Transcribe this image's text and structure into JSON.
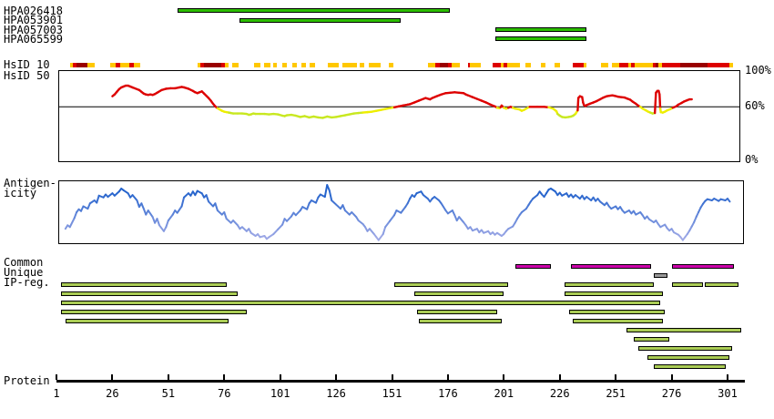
{
  "tracks": {
    "bar_color": "#2CBE00",
    "items": [
      {
        "label": "HPA026418",
        "start": 55,
        "end": 177
      },
      {
        "label": "HPA053901",
        "start": 83,
        "end": 155
      },
      {
        "label": "HPA057003",
        "start": 197,
        "end": 238
      },
      {
        "label": "HPA065599",
        "start": 197,
        "end": 238
      }
    ]
  },
  "hsid10": {
    "label": "HsID 10",
    "colors": {
      "O": "#FFC800",
      "R": "#DD0000",
      "D": "#990000"
    },
    "segments": [
      [
        7,
        8.5,
        "O"
      ],
      [
        8.5,
        10,
        "R"
      ],
      [
        10,
        15,
        "D"
      ],
      [
        15,
        18,
        "O"
      ],
      [
        25,
        27.5,
        "O"
      ],
      [
        27.5,
        29.5,
        "R"
      ],
      [
        29.5,
        33.5,
        "O"
      ],
      [
        33.5,
        35.5,
        "R"
      ],
      [
        35.5,
        38.5,
        "O"
      ],
      [
        64,
        65.5,
        "O"
      ],
      [
        65.5,
        67,
        "R"
      ],
      [
        67,
        74.5,
        "D"
      ],
      [
        74.5,
        76.5,
        "R"
      ],
      [
        76.5,
        78,
        "O"
      ],
      [
        79.5,
        82.5,
        "O"
      ],
      [
        89.5,
        92,
        "O"
      ],
      [
        94,
        96.5,
        "O"
      ],
      [
        98,
        99.5,
        "O"
      ],
      [
        102,
        104,
        "O"
      ],
      [
        106.5,
        108.5,
        "O"
      ],
      [
        110.5,
        112.5,
        "O"
      ],
      [
        114,
        116.5,
        "O"
      ],
      [
        122.5,
        127,
        "O"
      ],
      [
        129,
        135.5,
        "O"
      ],
      [
        136.5,
        138.5,
        "O"
      ],
      [
        140.5,
        146,
        "O"
      ],
      [
        149.5,
        151.5,
        "O"
      ],
      [
        167,
        170.5,
        "O"
      ],
      [
        170.5,
        172.5,
        "R"
      ],
      [
        172.5,
        176,
        "D"
      ],
      [
        176,
        177.5,
        "R"
      ],
      [
        177.5,
        181.5,
        "O"
      ],
      [
        185,
        186,
        "R"
      ],
      [
        186,
        190.5,
        "O"
      ],
      [
        196,
        199.5,
        "R"
      ],
      [
        199.5,
        201,
        "O"
      ],
      [
        201,
        202.5,
        "R"
      ],
      [
        202.5,
        208,
        "O"
      ],
      [
        210.5,
        213,
        "O"
      ],
      [
        217.5,
        219.5,
        "O"
      ],
      [
        223.5,
        226,
        "O"
      ],
      [
        232,
        236.5,
        "R"
      ],
      [
        236.5,
        238,
        "O"
      ],
      [
        244.5,
        247.5,
        "O"
      ],
      [
        249.5,
        252.5,
        "O"
      ],
      [
        252.5,
        256.5,
        "R"
      ],
      [
        256.5,
        258,
        "O"
      ],
      [
        258,
        259.5,
        "R"
      ],
      [
        259.5,
        267.5,
        "O"
      ],
      [
        267.5,
        269,
        "R"
      ],
      [
        269,
        270,
        "D"
      ],
      [
        270,
        271.5,
        "O"
      ],
      [
        271.5,
        280,
        "R"
      ],
      [
        280,
        292,
        "D"
      ],
      [
        292,
        302,
        "R"
      ],
      [
        302,
        303.5,
        "O"
      ]
    ]
  },
  "hsid50": {
    "label": "HsID 50",
    "pct_labels": [
      "100%",
      "60%",
      "0%"
    ],
    "colors": {
      "above": "#DD0000",
      "mid": "#EEEE00",
      "low": "#C8E820"
    },
    "rules": {
      "red_min": 59.5,
      "yellow_min": 53.5
    }
  },
  "antigenicity": {
    "label_line1": "Antigen-",
    "label_line2": "icity",
    "color_low": "#A8AEE8",
    "color_high": "#2463CC"
  },
  "regions": {
    "common_label": "Common",
    "unique_label": "Unique",
    "ip_label": "IP-reg.",
    "common_color": "#CC00AA",
    "unique_color": "#999999",
    "ip_color": "#AACC55"
  },
  "axis": {
    "label": "Protein"
  },
  "chart_data": [
    {
      "id": "antibody_coverage",
      "type": "gantt",
      "units": "residues",
      "tracks": [
        {
          "name": "HPA026418",
          "start": 55,
          "end": 177
        },
        {
          "name": "HPA053901",
          "start": 83,
          "end": 155
        },
        {
          "name": "HPA057003",
          "start": 197,
          "end": 238
        },
        {
          "name": "HPA065599",
          "start": 197,
          "end": 238
        }
      ]
    },
    {
      "id": "hsid50",
      "type": "line",
      "title": "HsID 50",
      "ylim": [
        0,
        100
      ],
      "threshold_pct": 60,
      "x_units": "residue",
      "points_flat": [
        26,
        72,
        27,
        74,
        28,
        77,
        29,
        80,
        30,
        82,
        31,
        83,
        32,
        84,
        33,
        84,
        34,
        83,
        35,
        82,
        36,
        81,
        38,
        79,
        39,
        77,
        40,
        75,
        41,
        74,
        42,
        73.5,
        43,
        74,
        44,
        73.5,
        45,
        74.5,
        46,
        76,
        48,
        79,
        50,
        80.5,
        52,
        81,
        54,
        81,
        56,
        82,
        57,
        82.5,
        58,
        82,
        60,
        80.5,
        62,
        78,
        63,
        76.5,
        64,
        75.5,
        65,
        76.5,
        66,
        77.5,
        67,
        75,
        68,
        72.5,
        69,
        70,
        70,
        67,
        71,
        63.5,
        72,
        60.5,
        73,
        58.5,
        74,
        57,
        75,
        55.5,
        76,
        54.5,
        77,
        54,
        78,
        53.5,
        79,
        53,
        80,
        52.5,
        82,
        52.5,
        84,
        52.5,
        86,
        52,
        87,
        51,
        88,
        51.5,
        89,
        52.5,
        90,
        52,
        92,
        52,
        94,
        52,
        96,
        51.5,
        98,
        52,
        100,
        51.5,
        102,
        50,
        103,
        49.5,
        104,
        50.5,
        106,
        51,
        108,
        50,
        110,
        48.5,
        112,
        49.5,
        114,
        48,
        116,
        49,
        118,
        48,
        120,
        47.5,
        122,
        49,
        124,
        48,
        126,
        48.5,
        128,
        49.5,
        130,
        50.5,
        132,
        51.5,
        134,
        52.5,
        136,
        53,
        138,
        53.5,
        140,
        54,
        142,
        54.5,
        144,
        55.5,
        146,
        56.5,
        148,
        57.5,
        150,
        58.5,
        152,
        59.5,
        154,
        60.5,
        156,
        61.5,
        158,
        62.5,
        159,
        63,
        161,
        65,
        163,
        67,
        165,
        69,
        166,
        70,
        168,
        68.5,
        169,
        70,
        171,
        72,
        173,
        74,
        175,
        75.5,
        177,
        76,
        179,
        76.5,
        181,
        76,
        183,
        75.5,
        184,
        74,
        185,
        73,
        187,
        71,
        189,
        69,
        191,
        67,
        193,
        65,
        195,
        62.5,
        197,
        60.5,
        198,
        59,
        199,
        58.5,
        199.5,
        59.5,
        200,
        61.5,
        201,
        59,
        202,
        58,
        203,
        59,
        204,
        60,
        205,
        59,
        206,
        58,
        208,
        57,
        209,
        55.5,
        210,
        56.5,
        211,
        58,
        212.5,
        60,
        216,
        60,
        219,
        60,
        221,
        59.5,
        223,
        58,
        224.5,
        55,
        225,
        52,
        226,
        50,
        227,
        48.5,
        228.5,
        48,
        230,
        48.5,
        231,
        49,
        232,
        50,
        233,
        52,
        234,
        56,
        234.3,
        70,
        235,
        72,
        236,
        71,
        236.4,
        65,
        236.8,
        62,
        237.5,
        61,
        238,
        62,
        239.5,
        63.5,
        241,
        65,
        242.5,
        66.5,
        244,
        68.5,
        245.5,
        70.5,
        247,
        72,
        248,
        72.5,
        249.5,
        73,
        250.5,
        72.5,
        252,
        71.5,
        253.5,
        71,
        255,
        70.5,
        256,
        69.5,
        257.5,
        68,
        258.5,
        66,
        260,
        63.5,
        261,
        61.5,
        262,
        60,
        263,
        58,
        264.5,
        56,
        265.5,
        54.5,
        266.5,
        53.5,
        267.5,
        52.5,
        268.5,
        53,
        269,
        76,
        269.6,
        78,
        270.2,
        78,
        270.6,
        74,
        270.9,
        58,
        271.2,
        54,
        272,
        53.5,
        273,
        54.5,
        274,
        56,
        275.5,
        57.5,
        276.5,
        59,
        278,
        60.5,
        279,
        62.5,
        280.5,
        64.5,
        281.5,
        66,
        283,
        67.5,
        284,
        68.5,
        285,
        68.5
      ]
    },
    {
      "id": "antigenicity",
      "type": "line",
      "title": "Antigenicity",
      "ylim": [
        0,
        1
      ],
      "x_units": "residue",
      "points_flat": [
        5,
        0.22,
        6,
        0.28,
        7,
        0.25,
        9,
        0.4,
        10,
        0.5,
        11,
        0.55,
        12,
        0.52,
        13,
        0.6,
        15,
        0.56,
        16,
        0.65,
        18,
        0.7,
        19,
        0.66,
        20,
        0.78,
        22,
        0.75,
        23,
        0.8,
        24,
        0.76,
        26,
        0.82,
        27,
        0.78,
        29,
        0.85,
        30,
        0.9,
        31,
        0.87,
        33,
        0.82,
        34,
        0.75,
        35,
        0.79,
        37,
        0.7,
        38,
        0.59,
        39,
        0.65,
        40,
        0.56,
        41,
        0.46,
        42,
        0.53,
        44,
        0.42,
        45,
        0.32,
        46,
        0.39,
        47,
        0.28,
        49,
        0.18,
        50,
        0.25,
        51,
        0.36,
        53,
        0.46,
        54,
        0.53,
        55,
        0.49,
        57,
        0.6,
        58,
        0.75,
        60,
        0.82,
        61,
        0.78,
        62,
        0.85,
        63,
        0.79,
        64,
        0.86,
        66,
        0.82,
        67,
        0.75,
        68,
        0.79,
        69,
        0.68,
        71,
        0.6,
        72,
        0.65,
        73,
        0.53,
        75,
        0.46,
        76,
        0.5,
        77,
        0.39,
        79,
        0.32,
        80,
        0.36,
        82,
        0.28,
        83,
        0.22,
        84,
        0.25,
        86,
        0.18,
        87,
        0.22,
        88,
        0.15,
        90,
        0.1,
        91,
        0.13,
        92,
        0.08,
        94,
        0.1,
        95,
        0.05,
        96,
        0.08,
        98,
        0.13,
        100,
        0.21,
        102,
        0.29,
        103,
        0.39,
        104,
        0.35,
        106,
        0.43,
        107,
        0.49,
        108,
        0.45,
        110,
        0.53,
        111,
        0.59,
        113,
        0.55,
        114,
        0.65,
        115,
        0.7,
        117,
        0.66,
        118,
        0.75,
        119,
        0.8,
        121,
        0.76,
        122,
        0.96,
        123,
        0.87,
        124,
        0.7,
        126,
        0.63,
        128,
        0.56,
        129,
        0.62,
        130,
        0.53,
        132,
        0.46,
        133,
        0.5,
        135,
        0.42,
        136,
        0.36,
        138,
        0.3,
        139,
        0.25,
        140,
        0.18,
        141,
        0.22,
        143,
        0.13,
        144,
        0.08,
        145,
        0.03,
        147,
        0.13,
        148,
        0.25,
        150,
        0.35,
        152,
        0.45,
        153,
        0.53,
        155,
        0.49,
        157,
        0.59,
        158,
        0.65,
        159,
        0.73,
        160,
        0.79,
        161,
        0.76,
        162,
        0.82,
        164,
        0.85,
        165,
        0.79,
        167,
        0.73,
        168,
        0.68,
        169,
        0.73,
        170,
        0.76,
        172,
        0.7,
        173,
        0.65,
        174,
        0.59,
        175,
        0.53,
        176,
        0.48,
        178,
        0.53,
        179,
        0.45,
        180,
        0.36,
        181,
        0.42,
        183,
        0.33,
        184,
        0.28,
        185,
        0.22,
        186,
        0.25,
        187,
        0.19,
        189,
        0.22,
        190,
        0.16,
        191,
        0.2,
        192,
        0.15,
        194,
        0.18,
        195,
        0.13,
        196,
        0.16,
        197,
        0.12,
        198,
        0.15,
        200,
        0.1,
        201,
        0.13,
        202,
        0.18,
        203,
        0.22,
        205,
        0.26,
        206,
        0.32,
        207,
        0.39,
        208,
        0.45,
        209,
        0.5,
        211,
        0.56,
        212,
        0.62,
        213,
        0.68,
        214,
        0.73,
        216,
        0.79,
        217,
        0.85,
        218,
        0.8,
        219,
        0.76,
        220,
        0.82,
        221,
        0.88,
        222,
        0.9,
        224,
        0.85,
        225,
        0.79,
        226,
        0.83,
        227,
        0.78,
        229,
        0.82,
        230,
        0.76,
        231,
        0.8,
        232,
        0.75,
        233,
        0.79,
        235,
        0.73,
        236,
        0.78,
        237,
        0.72,
        238,
        0.76,
        240,
        0.7,
        241,
        0.75,
        242,
        0.69,
        243,
        0.73,
        244,
        0.68,
        246,
        0.62,
        247,
        0.66,
        248,
        0.6,
        249,
        0.56,
        251,
        0.6,
        252,
        0.55,
        253,
        0.59,
        254,
        0.53,
        255,
        0.49,
        257,
        0.53,
        258,
        0.48,
        259,
        0.52,
        260,
        0.46,
        262,
        0.5,
        263,
        0.45,
        264,
        0.39,
        265,
        0.43,
        266,
        0.38,
        268,
        0.33,
        269,
        0.36,
        270,
        0.3,
        271,
        0.25,
        273,
        0.29,
        274,
        0.23,
        275,
        0.19,
        276,
        0.22,
        277,
        0.16,
        279,
        0.12,
        280,
        0.08,
        281,
        0.03,
        282,
        0.08,
        283,
        0.13,
        284,
        0.19,
        285,
        0.26,
        286,
        0.33,
        287,
        0.42,
        288,
        0.5,
        289,
        0.58,
        290,
        0.64,
        291,
        0.69,
        292,
        0.72,
        294,
        0.7,
        295,
        0.73,
        297,
        0.69,
        298,
        0.72,
        300,
        0.7,
        301,
        0.73,
        302,
        0.68
      ]
    },
    {
      "id": "regions",
      "type": "gantt",
      "units": "residues",
      "common": [
        [
          206,
          222
        ],
        [
          231,
          267
        ],
        [
          276,
          304
        ]
      ],
      "unique": [
        [
          268,
          274
        ]
      ],
      "ip_rows": [
        [
          [
            3,
            77
          ],
          [
            152,
            203
          ],
          [
            228,
            268
          ],
          [
            276,
            290
          ],
          [
            291,
            306
          ]
        ],
        [
          [
            3,
            82
          ],
          [
            161,
            201
          ],
          [
            228,
            272
          ]
        ],
        [
          [
            3,
            271
          ]
        ],
        [
          [
            3,
            86
          ],
          [
            162,
            198
          ],
          [
            230,
            273
          ]
        ],
        [
          [
            5,
            78
          ],
          [
            163,
            200
          ],
          [
            232,
            272
          ]
        ],
        [
          [
            256,
            307
          ]
        ],
        [
          [
            259,
            275
          ]
        ],
        [
          [
            261,
            303
          ]
        ],
        [
          [
            265,
            302
          ]
        ],
        [
          [
            268,
            300
          ]
        ]
      ]
    },
    {
      "id": "protein_axis",
      "type": "axis",
      "xlabel": "Protein",
      "xlim": [
        1,
        308
      ],
      "ticks": [
        1,
        26,
        51,
        76,
        101,
        126,
        151,
        176,
        201,
        226,
        251,
        276,
        301
      ]
    }
  ]
}
